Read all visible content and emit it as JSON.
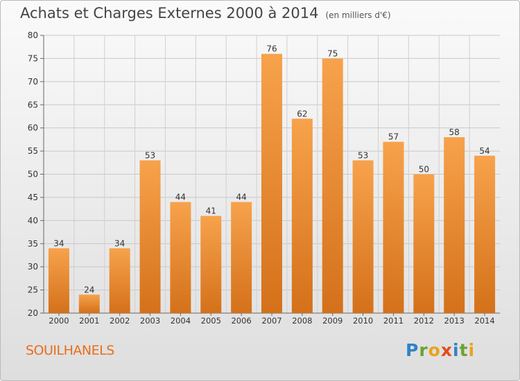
{
  "title": "Achats et Charges Externes 2000 à 2014",
  "subtitle": "(en milliers d'€)",
  "commune": "SOUILHANELS",
  "logo_text": "Proxiti",
  "colors": {
    "bar_light": "#f7a24c",
    "bar_dark": "#d4711a",
    "commune": "#ea6d1c"
  },
  "chart_data": {
    "type": "bar",
    "title": "Achats et Charges Externes 2000 à 2014",
    "subtitle": "(en milliers d'€)",
    "categories": [
      "2000",
      "2001",
      "2002",
      "2003",
      "2004",
      "2005",
      "2006",
      "2007",
      "2008",
      "2009",
      "2010",
      "2011",
      "2012",
      "2013",
      "2014"
    ],
    "values": [
      34,
      24,
      34,
      53,
      44,
      41,
      44,
      76,
      62,
      75,
      53,
      57,
      50,
      58,
      54
    ],
    "ylim": [
      20,
      80
    ],
    "yticks": [
      20,
      25,
      30,
      35,
      40,
      45,
      50,
      55,
      60,
      65,
      70,
      75,
      80
    ],
    "grid": true,
    "xlabel": "",
    "ylabel": ""
  }
}
